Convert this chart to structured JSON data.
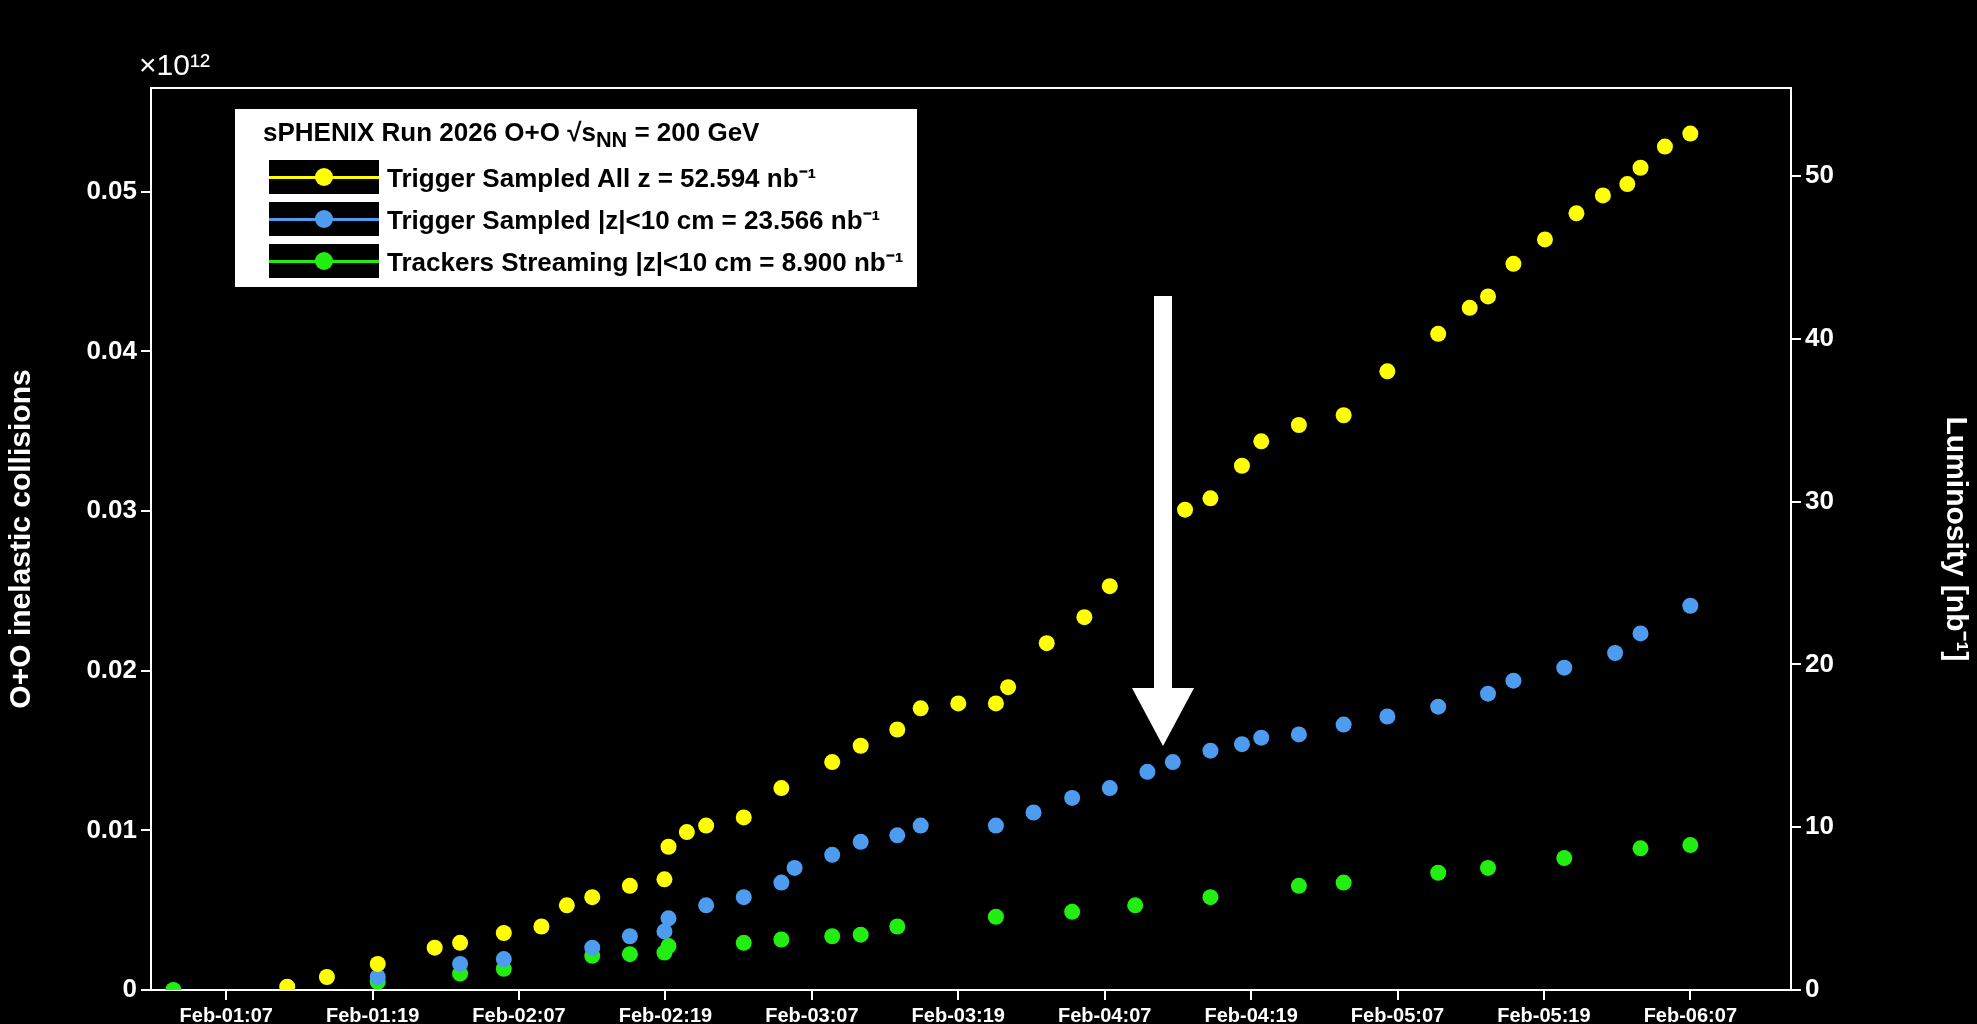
{
  "chart_data": {
    "type": "scatter",
    "ylabel": "O+O inelastic collisions",
    "y2label": "Luminosity [nb⁻¹]",
    "legend_title": "sPHENIX Run 2026 O+O √s$_{NN}$ = 200 GeV",
    "annotations": [
      "×10¹²"
    ],
    "xlim": [
      "2026-02-01T00:50",
      "2026-02-06T15:15"
    ],
    "xticks": [
      {
        "value": "2026-02-01T07:00",
        "label": "Feb-01:07"
      },
      {
        "value": "2026-02-01T19:00",
        "label": "Feb-01:19"
      },
      {
        "value": "2026-02-02T07:00",
        "label": "Feb-02:07"
      },
      {
        "value": "2026-02-02T19:00",
        "label": "Feb-02:19"
      },
      {
        "value": "2026-02-03T07:00",
        "label": "Feb-03:07"
      },
      {
        "value": "2026-02-03T19:00",
        "label": "Feb-03:19"
      },
      {
        "value": "2026-02-04T07:00",
        "label": "Feb-04:07"
      },
      {
        "value": "2026-02-04T19:00",
        "label": "Feb-04:19"
      },
      {
        "value": "2026-02-05T07:00",
        "label": "Feb-05:07"
      },
      {
        "value": "2026-02-05T19:00",
        "label": "Feb-05:19"
      },
      {
        "value": "2026-02-06T07:00",
        "label": "Feb-06:07"
      }
    ],
    "ylim": [
      0,
      0.0565
    ],
    "yticks": [
      0,
      0.01,
      0.02,
      0.03,
      0.04,
      0.05
    ],
    "y2lim": [
      0,
      55.4
    ],
    "y2ticks": [
      0,
      10,
      20,
      30,
      40,
      50
    ],
    "grid": false,
    "legend": "top left",
    "marker": "circle",
    "series": [
      {
        "name": "Trigger Sampled All z = 52.594 nb⁻¹",
        "color": "#ffff00",
        "axis": "y2",
        "x": [
          "2026-02-01T12:00",
          "2026-02-01T15:15",
          "2026-02-01T19:25",
          "2026-02-02T00:05",
          "2026-02-02T02:10",
          "2026-02-02T05:45",
          "2026-02-02T08:50",
          "2026-02-02T10:55",
          "2026-02-02T13:00",
          "2026-02-02T16:05",
          "2026-02-02T18:55",
          "2026-02-02T19:15",
          "2026-02-02T20:45",
          "2026-02-02T22:20",
          "2026-02-03T01:25",
          "2026-02-03T04:30",
          "2026-02-03T08:40",
          "2026-02-03T11:00",
          "2026-02-03T14:00",
          "2026-02-03T15:55",
          "2026-02-03T19:00",
          "2026-02-03T22:05",
          "2026-02-03T23:05",
          "2026-02-04T02:15",
          "2026-02-04T05:20",
          "2026-02-04T07:25",
          "2026-02-04T11:35",
          "2026-02-04T13:35",
          "2026-02-04T15:40",
          "2026-02-04T18:15",
          "2026-02-04T19:50",
          "2026-02-04T22:55",
          "2026-02-05T02:35",
          "2026-02-05T06:10",
          "2026-02-05T10:20",
          "2026-02-05T12:55",
          "2026-02-05T14:25",
          "2026-02-05T16:30",
          "2026-02-05T19:05",
          "2026-02-05T21:40",
          "2026-02-05T23:50",
          "2026-02-06T01:50",
          "2026-02-06T02:55",
          "2026-02-06T04:55",
          "2026-02-06T07:00"
        ],
        "values": [
          0.2,
          0.8,
          1.6,
          2.6,
          2.9,
          3.5,
          3.9,
          5.2,
          5.7,
          6.4,
          6.8,
          8.8,
          9.7,
          10.1,
          10.6,
          12.4,
          14.0,
          15.0,
          16.0,
          17.3,
          17.6,
          17.6,
          18.6,
          21.3,
          22.9,
          24.8,
          null,
          29.5,
          30.2,
          32.2,
          33.7,
          34.7,
          35.3,
          38.0,
          40.3,
          41.9,
          42.6,
          44.6,
          46.1,
          47.7,
          48.8,
          49.5,
          50.5,
          51.8,
          52.6
        ]
      },
      {
        "name": "Trigger Sampled |z|<10 cm = 23.566 nb⁻¹",
        "color": "#4d9cf0",
        "axis": "y2",
        "x": [
          "2026-02-01T19:25",
          "2026-02-02T02:10",
          "2026-02-02T05:45",
          "2026-02-02T13:00",
          "2026-02-02T16:05",
          "2026-02-02T18:55",
          "2026-02-02T19:15",
          "2026-02-02T22:20",
          "2026-02-03T01:25",
          "2026-02-03T04:30",
          "2026-02-03T05:35",
          "2026-02-03T08:40",
          "2026-02-03T11:00",
          "2026-02-03T14:00",
          "2026-02-03T15:55",
          "2026-02-03T22:05",
          "2026-02-04T01:10",
          "2026-02-04T04:20",
          "2026-02-04T07:25",
          "2026-02-04T10:30",
          "2026-02-04T12:35",
          "2026-02-04T15:40",
          "2026-02-04T18:15",
          "2026-02-04T19:50",
          "2026-02-04T22:55",
          "2026-02-05T02:35",
          "2026-02-05T06:10",
          "2026-02-05T10:20",
          "2026-02-05T14:25",
          "2026-02-05T16:30",
          "2026-02-05T20:40",
          "2026-02-06T00:50",
          "2026-02-06T02:55",
          "2026-02-06T07:00"
        ],
        "values": [
          0.8,
          1.6,
          1.9,
          2.6,
          3.3,
          3.6,
          4.4,
          5.2,
          5.7,
          6.6,
          7.5,
          8.3,
          9.1,
          9.5,
          10.1,
          10.1,
          10.9,
          11.8,
          12.4,
          13.4,
          14.0,
          14.7,
          15.1,
          15.5,
          15.7,
          16.3,
          16.8,
          17.4,
          18.2,
          19.0,
          19.8,
          20.7,
          21.9,
          23.6
        ]
      },
      {
        "name": "Trackers Streaming |z|<10 cm = 8.900 nb⁻¹",
        "color": "#22ee11",
        "axis": "y2",
        "x": [
          "2026-02-01T02:40",
          "2026-02-01T19:25",
          "2026-02-02T02:10",
          "2026-02-02T05:45",
          "2026-02-02T13:00",
          "2026-02-02T16:05",
          "2026-02-02T18:55",
          "2026-02-02T19:15",
          "2026-02-03T01:25",
          "2026-02-03T04:30",
          "2026-02-03T08:40",
          "2026-02-03T11:00",
          "2026-02-03T14:00",
          "2026-02-03T22:05",
          "2026-02-04T04:20",
          "2026-02-04T09:30",
          "2026-02-04T15:40",
          "2026-02-04T22:55",
          "2026-02-05T02:35",
          "2026-02-05T10:20",
          "2026-02-05T14:25",
          "2026-02-05T20:40",
          "2026-02-06T02:55",
          "2026-02-06T07:00"
        ],
        "values": [
          0,
          0.5,
          1.0,
          1.3,
          2.1,
          2.2,
          2.3,
          2.7,
          2.9,
          3.1,
          3.3,
          3.4,
          3.9,
          4.5,
          4.8,
          5.2,
          5.7,
          6.4,
          6.6,
          7.2,
          7.5,
          8.1,
          8.7,
          8.9
        ]
      }
    ]
  }
}
